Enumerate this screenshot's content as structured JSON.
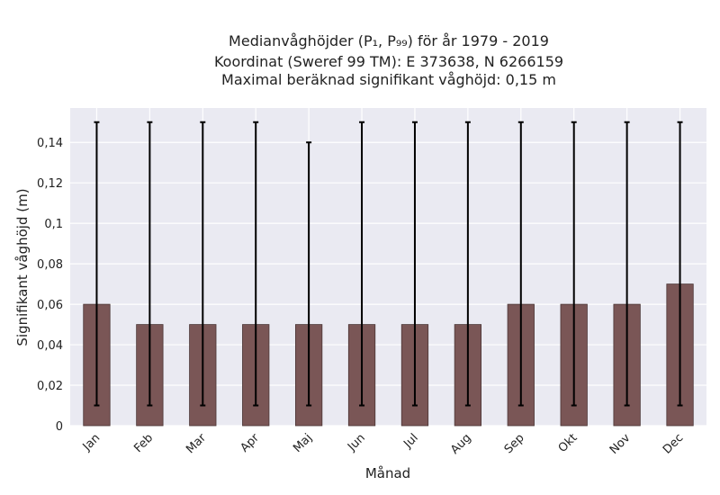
{
  "title_lines": [
    "Medianvåghöjder (P₁, P₉₉) för år 1979 - 2019",
    "Koordinat (Sweref 99 TM): E 373638, N 6266159",
    "Maximal beräknad signifikant våghöjd: 0,15 m"
  ],
  "chart_data": {
    "type": "bar",
    "categories": [
      "Jan",
      "Feb",
      "Mar",
      "Apr",
      "Maj",
      "Jun",
      "Jul",
      "Aug",
      "Sep",
      "Okt",
      "Nov",
      "Dec"
    ],
    "values": [
      0.06,
      0.05,
      0.05,
      0.05,
      0.05,
      0.05,
      0.05,
      0.05,
      0.06,
      0.06,
      0.06,
      0.07
    ],
    "error_low": [
      0.01,
      0.01,
      0.01,
      0.01,
      0.01,
      0.01,
      0.01,
      0.01,
      0.01,
      0.01,
      0.01,
      0.01
    ],
    "error_high": [
      0.15,
      0.15,
      0.15,
      0.15,
      0.14,
      0.15,
      0.15,
      0.15,
      0.15,
      0.15,
      0.15,
      0.15
    ],
    "xlabel": "Månad",
    "ylabel": "Signifikant våghöjd (m)",
    "ylim": [
      0,
      0.157
    ],
    "yticks": [
      0,
      0.02,
      0.04,
      0.06,
      0.08,
      0.1,
      0.12,
      0.14
    ],
    "ytick_labels": [
      "0",
      "0,02",
      "0,04",
      "0,06",
      "0,08",
      "0,1",
      "0,12",
      "0,14"
    ],
    "grid": true,
    "bar_color": "#7a5656",
    "background_color": "#eaeaf2"
  }
}
